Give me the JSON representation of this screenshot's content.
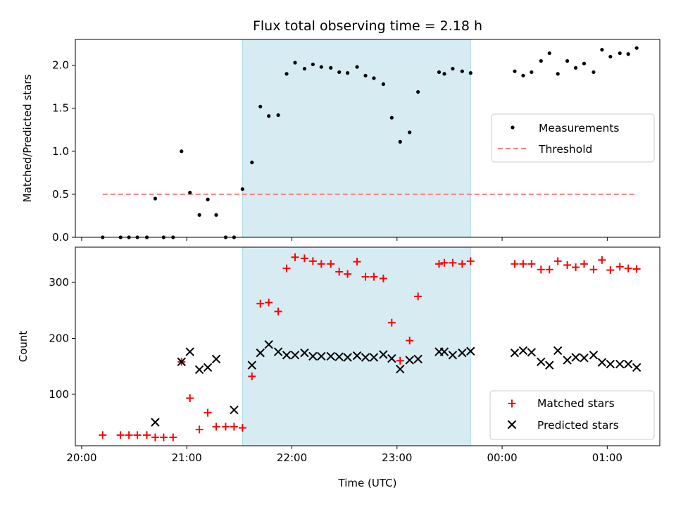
{
  "figure": {
    "title": "Flux total observing time = 2.18 h",
    "xlabel": "Time (UTC)",
    "x_tick_labels": [
      "20:00",
      "21:00",
      "22:00",
      "23:00",
      "00:00",
      "01:00"
    ]
  },
  "colors": {
    "measurements": "#000000",
    "threshold": "#ff7f7f",
    "matched": "#ff0000",
    "predicted": "#000000",
    "span": "#add8e6"
  },
  "chart_data": [
    {
      "type": "scatter",
      "panel": "top",
      "ylabel": "Matched/Predicted stars",
      "ylim": [
        0,
        2.3
      ],
      "y_ticks": [
        0.0,
        0.5,
        1.0,
        1.5,
        2.0
      ],
      "x_unit": "hours since 20:00 UTC",
      "x_ticks": [
        0,
        1,
        2,
        3,
        4,
        5
      ],
      "x_tick_labels": [
        "20:00",
        "21:00",
        "22:00",
        "23:00",
        "00:00",
        "01:00"
      ],
      "legend": {
        "position": "center-right",
        "entries": [
          "Measurements",
          "Threshold"
        ]
      },
      "highlight_span": [
        1.53,
        3.7
      ],
      "threshold": {
        "name": "Threshold",
        "y": 0.5,
        "x_range": [
          0.2,
          5.28
        ]
      },
      "series": [
        {
          "name": "Measurements",
          "points": [
            [
              0.2,
              0.0
            ],
            [
              0.37,
              0.0
            ],
            [
              0.45,
              0.0
            ],
            [
              0.53,
              0.0
            ],
            [
              0.62,
              0.0
            ],
            [
              0.7,
              0.45
            ],
            [
              0.78,
              0.0
            ],
            [
              0.87,
              0.0
            ],
            [
              0.95,
              1.0
            ],
            [
              1.03,
              0.52
            ],
            [
              1.12,
              0.26
            ],
            [
              1.2,
              0.44
            ],
            [
              1.28,
              0.26
            ],
            [
              1.37,
              0.0
            ],
            [
              1.45,
              0.0
            ],
            [
              1.53,
              0.56
            ],
            [
              1.62,
              0.87
            ],
            [
              1.7,
              1.52
            ],
            [
              1.78,
              1.41
            ],
            [
              1.87,
              1.42
            ],
            [
              1.95,
              1.9
            ],
            [
              2.03,
              2.03
            ],
            [
              2.12,
              1.96
            ],
            [
              2.2,
              2.01
            ],
            [
              2.28,
              1.98
            ],
            [
              2.37,
              1.97
            ],
            [
              2.45,
              1.92
            ],
            [
              2.53,
              1.91
            ],
            [
              2.62,
              1.98
            ],
            [
              2.7,
              1.88
            ],
            [
              2.78,
              1.85
            ],
            [
              2.87,
              1.78
            ],
            [
              2.95,
              1.39
            ],
            [
              3.03,
              1.11
            ],
            [
              3.12,
              1.22
            ],
            [
              3.2,
              1.69
            ],
            [
              3.4,
              1.92
            ],
            [
              3.45,
              1.9
            ],
            [
              3.53,
              1.96
            ],
            [
              3.62,
              1.93
            ],
            [
              3.7,
              1.91
            ],
            [
              4.12,
              1.93
            ],
            [
              4.2,
              1.88
            ],
            [
              4.28,
              1.92
            ],
            [
              4.37,
              2.05
            ],
            [
              4.45,
              2.14
            ],
            [
              4.53,
              1.9
            ],
            [
              4.62,
              2.05
            ],
            [
              4.7,
              1.97
            ],
            [
              4.78,
              2.02
            ],
            [
              4.87,
              1.92
            ],
            [
              4.95,
              2.18
            ],
            [
              5.03,
              2.1
            ],
            [
              5.12,
              2.14
            ],
            [
              5.2,
              2.13
            ],
            [
              5.28,
              2.2
            ]
          ]
        }
      ]
    },
    {
      "type": "scatter",
      "panel": "bottom",
      "ylabel": "Count",
      "xlabel": "Time (UTC)",
      "ylim": [
        8,
        363
      ],
      "y_ticks": [
        100,
        200,
        300
      ],
      "x_unit": "hours since 20:00 UTC",
      "x_ticks": [
        0,
        1,
        2,
        3,
        4,
        5
      ],
      "x_tick_labels": [
        "20:00",
        "21:00",
        "22:00",
        "23:00",
        "00:00",
        "01:00"
      ],
      "legend": {
        "position": "lower-right",
        "entries": [
          "Matched stars",
          "Predicted stars"
        ]
      },
      "highlight_span": [
        1.53,
        3.7
      ],
      "series": [
        {
          "name": "Matched stars",
          "marker": "plus",
          "points": [
            [
              0.2,
              27
            ],
            [
              0.37,
              27
            ],
            [
              0.45,
              27
            ],
            [
              0.53,
              27
            ],
            [
              0.62,
              27
            ],
            [
              0.7,
              23
            ],
            [
              0.78,
              23
            ],
            [
              0.87,
              23
            ],
            [
              0.95,
              158
            ],
            [
              1.03,
              93
            ],
            [
              1.12,
              37
            ],
            [
              1.2,
              67
            ],
            [
              1.28,
              42
            ],
            [
              1.37,
              42
            ],
            [
              1.45,
              42
            ],
            [
              1.53,
              40
            ],
            [
              1.62,
              132
            ],
            [
              1.7,
              262
            ],
            [
              1.78,
              264
            ],
            [
              1.87,
              248
            ],
            [
              1.95,
              325
            ],
            [
              2.03,
              345
            ],
            [
              2.12,
              343
            ],
            [
              2.2,
              338
            ],
            [
              2.28,
              333
            ],
            [
              2.37,
              333
            ],
            [
              2.45,
              319
            ],
            [
              2.53,
              315
            ],
            [
              2.62,
              337
            ],
            [
              2.7,
              310
            ],
            [
              2.78,
              310
            ],
            [
              2.87,
              307
            ],
            [
              2.95,
              228
            ],
            [
              3.03,
              160
            ],
            [
              3.12,
              196
            ],
            [
              3.2,
              275
            ],
            [
              3.4,
              333
            ],
            [
              3.45,
              335
            ],
            [
              3.53,
              335
            ],
            [
              3.62,
              333
            ],
            [
              3.7,
              338
            ],
            [
              4.12,
              333
            ],
            [
              4.2,
              333
            ],
            [
              4.28,
              333
            ],
            [
              4.37,
              323
            ],
            [
              4.45,
              323
            ],
            [
              4.53,
              338
            ],
            [
              4.62,
              331
            ],
            [
              4.7,
              327
            ],
            [
              4.78,
              333
            ],
            [
              4.87,
              323
            ],
            [
              4.95,
              340
            ],
            [
              5.03,
              322
            ],
            [
              5.12,
              328
            ],
            [
              5.2,
              325
            ],
            [
              5.28,
              324
            ]
          ]
        },
        {
          "name": "Predicted stars",
          "marker": "x",
          "points": [
            [
              0.7,
              50
            ],
            [
              0.95,
              158
            ],
            [
              1.03,
              176
            ],
            [
              1.12,
              144
            ],
            [
              1.2,
              148
            ],
            [
              1.28,
              163
            ],
            [
              1.45,
              72
            ],
            [
              1.62,
              152
            ],
            [
              1.7,
              174
            ],
            [
              1.78,
              189
            ],
            [
              1.87,
              176
            ],
            [
              1.95,
              170
            ],
            [
              2.03,
              170
            ],
            [
              2.12,
              174
            ],
            [
              2.2,
              168
            ],
            [
              2.28,
              168
            ],
            [
              2.37,
              168
            ],
            [
              2.45,
              167
            ],
            [
              2.53,
              166
            ],
            [
              2.62,
              169
            ],
            [
              2.7,
              166
            ],
            [
              2.78,
              166
            ],
            [
              2.87,
              171
            ],
            [
              2.95,
              164
            ],
            [
              3.03,
              145
            ],
            [
              3.12,
              161
            ],
            [
              3.2,
              163
            ],
            [
              3.4,
              176
            ],
            [
              3.45,
              176
            ],
            [
              3.53,
              170
            ],
            [
              3.62,
              174
            ],
            [
              3.7,
              177
            ],
            [
              4.12,
              174
            ],
            [
              4.2,
              178
            ],
            [
              4.28,
              175
            ],
            [
              4.37,
              158
            ],
            [
              4.45,
              152
            ],
            [
              4.53,
              178
            ],
            [
              4.62,
              161
            ],
            [
              4.7,
              166
            ],
            [
              4.78,
              165
            ],
            [
              4.87,
              170
            ],
            [
              4.95,
              157
            ],
            [
              5.03,
              154
            ],
            [
              5.12,
              154
            ],
            [
              5.2,
              154
            ],
            [
              5.28,
              148
            ]
          ]
        }
      ]
    }
  ]
}
